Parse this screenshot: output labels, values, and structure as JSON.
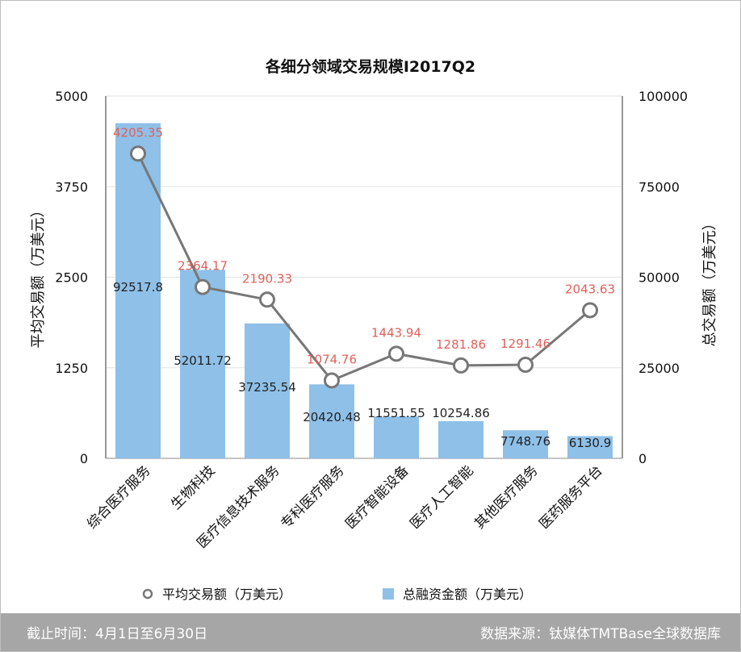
{
  "chart_data": {
    "type": "bar",
    "title": "各细分领域交易规模I2017Q2",
    "categories": [
      "综合医疗服务",
      "生物科技",
      "医疗信息技术服务",
      "专科医疗服务",
      "医疗智能设备",
      "医疗人工智能",
      "其他医疗服务",
      "医药服务平台"
    ],
    "series": [
      {
        "name": "总融资金额（万美元）",
        "type": "bar",
        "axis": "right",
        "color": "#8ec0e8",
        "values": [
          92517.8,
          52011.72,
          37235.54,
          20420.48,
          11551.55,
          10254.86,
          7748.76,
          6130.9
        ],
        "labels": [
          "92517.8",
          "52011.72",
          "37235.54",
          "20420.48",
          "11551.55",
          "10254.86",
          "7748.76",
          "6130.9"
        ]
      },
      {
        "name": "平均交易额（万美元）",
        "type": "line",
        "axis": "left",
        "color": "#777777",
        "values": [
          4205.35,
          2364.17,
          2190.33,
          1074.76,
          1443.94,
          1281.86,
          1291.46,
          2043.63
        ],
        "labels": [
          "4205.35",
          "2364.17",
          "2190.33",
          "1074.76",
          "1443.94",
          "1281.86",
          "1291.46",
          "2043.63"
        ]
      }
    ],
    "ylabel_left": "平均交易额（万美元）",
    "ylabel_right": "总交易额（万美元）",
    "ylim_left": [
      0,
      5000
    ],
    "ylim_right": [
      0,
      100000
    ],
    "yticks_left": [
      "0",
      "1250",
      "2500",
      "3750",
      "5000"
    ],
    "yticks_right": [
      "0",
      "25000",
      "50000",
      "75000",
      "100000"
    ],
    "line_label_color": "#e0605a",
    "grid": true,
    "legend_position": "bottom"
  },
  "footer": {
    "left": "截止时间：4月1日至6月30日",
    "right": "数据来源：钛媒体TMTBase全球数据库"
  }
}
